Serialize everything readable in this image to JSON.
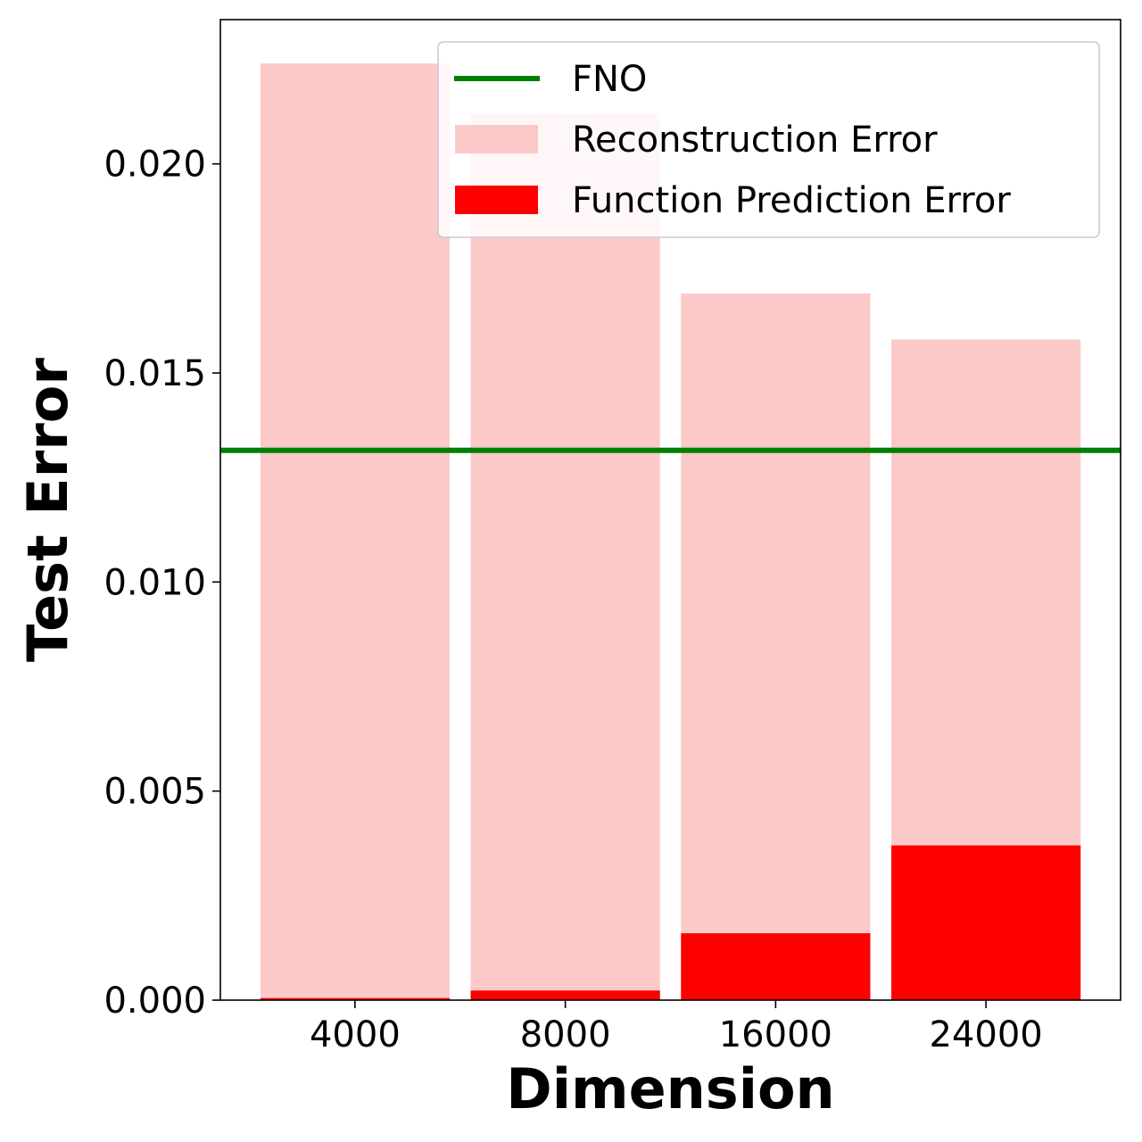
{
  "chart_data": {
    "type": "bar",
    "categories": [
      "4000",
      "8000",
      "16000",
      "24000"
    ],
    "series": [
      {
        "name": "Reconstruction Error",
        "values": [
          0.0224,
          0.0212,
          0.0169,
          0.0158
        ],
        "color": "#fcc9c9"
      },
      {
        "name": "Function Prediction Error",
        "values": [
          5e-05,
          0.00023,
          0.0016,
          0.0037
        ],
        "color": "#ff0000"
      }
    ],
    "reference_lines": [
      {
        "name": "FNO",
        "value": 0.01315,
        "color": "#007f00"
      }
    ],
    "xlabel": "Dimension",
    "ylabel": "Test Error",
    "ylim": [
      0,
      0.02345
    ],
    "yticks": [
      0.0,
      0.005,
      0.01,
      0.015,
      0.02
    ],
    "ytick_labels": [
      "0.000",
      "0.005",
      "0.010",
      "0.015",
      "0.020"
    ],
    "grid": false,
    "legend": {
      "position": "top-right",
      "entries": [
        "FNO",
        "Reconstruction Error",
        "Function Prediction Error"
      ]
    }
  }
}
